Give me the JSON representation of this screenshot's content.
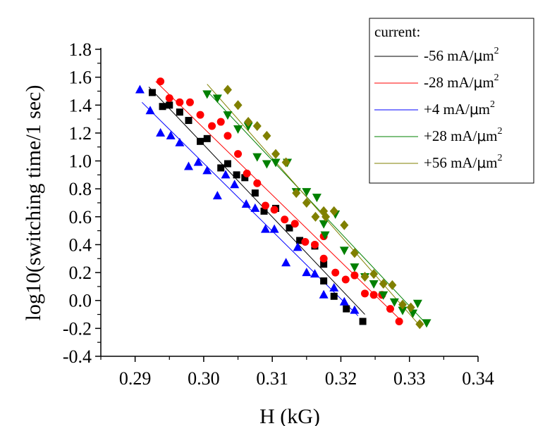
{
  "chart_data": {
    "type": "scatter",
    "xlabel": "H (kG)",
    "ylabel": "log10(switching time/1 sec)",
    "xlim": [
      0.285,
      0.34
    ],
    "ylim": [
      -0.4,
      1.8
    ],
    "xticks": [
      "0.29",
      "0.30",
      "0.31",
      "0.32",
      "0.33",
      "0.34"
    ],
    "yticks": [
      "-0.4",
      "-0.2",
      "0.0",
      "0.2",
      "0.4",
      "0.6",
      "0.8",
      "1.0",
      "1.2",
      "1.4",
      "1.6",
      "1.8"
    ],
    "grid": false,
    "legend": {
      "title": "current:",
      "placement": "top-right",
      "entries": [
        {
          "prefix": "-56 mA/",
          "mu": "μ",
          "unit": "m",
          "sup": "2"
        },
        {
          "prefix": "-28 mA/",
          "mu": "μ",
          "unit": "m",
          "sup": "2"
        },
        {
          "prefix": "+4 mA/",
          "mu": "μ",
          "unit": "m",
          "sup": "2"
        },
        {
          "prefix": "+28 mA/",
          "mu": "μ",
          "unit": "m",
          "sup": "2"
        },
        {
          "prefix": "+56 mA/",
          "mu": "μ",
          "unit": "m",
          "sup": "2"
        }
      ]
    },
    "series": [
      {
        "name": "-56 mA/μm²",
        "color": "#000000",
        "marker": "square",
        "fit": [
          [
            0.292,
            1.53
          ],
          [
            0.3235,
            -0.1
          ]
        ],
        "points": [
          [
            0.2925,
            1.49
          ],
          [
            0.294,
            1.39
          ],
          [
            0.295,
            1.4
          ],
          [
            0.2965,
            1.35
          ],
          [
            0.2978,
            1.29
          ],
          [
            0.2995,
            1.14
          ],
          [
            0.3005,
            1.16
          ],
          [
            0.3025,
            0.95
          ],
          [
            0.3035,
            0.98
          ],
          [
            0.3048,
            0.9
          ],
          [
            0.306,
            0.88
          ],
          [
            0.3075,
            0.77
          ],
          [
            0.3088,
            0.64
          ],
          [
            0.3105,
            0.66
          ],
          [
            0.3125,
            0.52
          ],
          [
            0.314,
            0.43
          ],
          [
            0.3162,
            0.39
          ],
          [
            0.3175,
            0.26
          ],
          [
            0.3175,
            0.14
          ],
          [
            0.319,
            0.03
          ],
          [
            0.3208,
            -0.06
          ],
          [
            0.3232,
            -0.15
          ]
        ]
      },
      {
        "name": "-28 mA/μm²",
        "color": "#ff0000",
        "marker": "circle",
        "fit": [
          [
            0.293,
            1.57
          ],
          [
            0.3285,
            -0.13
          ]
        ],
        "points": [
          [
            0.2937,
            1.57
          ],
          [
            0.295,
            1.45
          ],
          [
            0.2965,
            1.42
          ],
          [
            0.298,
            1.42
          ],
          [
            0.2995,
            1.33
          ],
          [
            0.3012,
            1.25
          ],
          [
            0.3025,
            1.28
          ],
          [
            0.3035,
            1.18
          ],
          [
            0.305,
            1.05
          ],
          [
            0.3063,
            0.91
          ],
          [
            0.3078,
            0.84
          ],
          [
            0.309,
            0.68
          ],
          [
            0.3103,
            0.65
          ],
          [
            0.3118,
            0.58
          ],
          [
            0.3133,
            0.55
          ],
          [
            0.3148,
            0.42
          ],
          [
            0.3162,
            0.4
          ],
          [
            0.3175,
            0.46
          ],
          [
            0.3175,
            0.3
          ],
          [
            0.3192,
            0.2
          ],
          [
            0.3207,
            0.15
          ],
          [
            0.322,
            0.18
          ],
          [
            0.3235,
            0.05
          ],
          [
            0.3248,
            0.04
          ],
          [
            0.326,
            0.04
          ],
          [
            0.3272,
            -0.06
          ],
          [
            0.3285,
            -0.15
          ]
        ]
      },
      {
        "name": "+4 mA/μm²",
        "color": "#0000ff",
        "marker": "triangle-up",
        "fit": [
          [
            0.291,
            1.42
          ],
          [
            0.3225,
            -0.11
          ]
        ],
        "points": [
          [
            0.2907,
            1.51
          ],
          [
            0.2922,
            1.36
          ],
          [
            0.2937,
            1.2
          ],
          [
            0.2952,
            1.18
          ],
          [
            0.2965,
            1.13
          ],
          [
            0.2978,
            0.96
          ],
          [
            0.2992,
            0.99
          ],
          [
            0.3005,
            0.93
          ],
          [
            0.302,
            0.75
          ],
          [
            0.3032,
            0.9
          ],
          [
            0.3045,
            0.83
          ],
          [
            0.3062,
            0.69
          ],
          [
            0.3075,
            0.66
          ],
          [
            0.309,
            0.51
          ],
          [
            0.3103,
            0.51
          ],
          [
            0.312,
            0.27
          ],
          [
            0.3137,
            0.38
          ],
          [
            0.315,
            0.2
          ],
          [
            0.3162,
            0.19
          ],
          [
            0.3175,
            0.04
          ],
          [
            0.319,
            0.09
          ],
          [
            0.3205,
            -0.01
          ],
          [
            0.322,
            -0.07
          ]
        ]
      },
      {
        "name": "+28 mA/μm²",
        "color": "#008000",
        "marker": "triangle-down",
        "fit": [
          [
            0.3005,
            1.5
          ],
          [
            0.3325,
            -0.17
          ]
        ],
        "points": [
          [
            0.3005,
            1.48
          ],
          [
            0.302,
            1.45
          ],
          [
            0.3035,
            1.33
          ],
          [
            0.305,
            1.23
          ],
          [
            0.3065,
            1.25
          ],
          [
            0.3078,
            1.03
          ],
          [
            0.3092,
            0.98
          ],
          [
            0.3105,
            0.99
          ],
          [
            0.3122,
            0.99
          ],
          [
            0.3135,
            0.78
          ],
          [
            0.315,
            0.78
          ],
          [
            0.3165,
            0.74
          ],
          [
            0.3175,
            0.55
          ],
          [
            0.3177,
            0.47
          ],
          [
            0.3192,
            0.62
          ],
          [
            0.3205,
            0.36
          ],
          [
            0.322,
            0.24
          ],
          [
            0.3235,
            0.17
          ],
          [
            0.3248,
            0.12
          ],
          [
            0.3262,
            0.04
          ],
          [
            0.3278,
            -0.01
          ],
          [
            0.329,
            -0.07
          ],
          [
            0.3305,
            -0.09
          ],
          [
            0.3312,
            -0.02
          ],
          [
            0.3325,
            -0.16
          ]
        ]
      },
      {
        "name": "+56 mA/μm²",
        "color": "#808000",
        "marker": "diamond",
        "fit": [
          [
            0.3005,
            1.55
          ],
          [
            0.3315,
            -0.18
          ]
        ],
        "points": [
          [
            0.3035,
            1.51
          ],
          [
            0.305,
            1.4
          ],
          [
            0.3065,
            1.28
          ],
          [
            0.3078,
            1.25
          ],
          [
            0.3092,
            1.18
          ],
          [
            0.3105,
            1.05
          ],
          [
            0.312,
            0.99
          ],
          [
            0.3135,
            0.77
          ],
          [
            0.315,
            0.7
          ],
          [
            0.3163,
            0.6
          ],
          [
            0.3175,
            0.64
          ],
          [
            0.3178,
            0.6
          ],
          [
            0.319,
            0.64
          ],
          [
            0.3205,
            0.54
          ],
          [
            0.322,
            0.34
          ],
          [
            0.3235,
            0.17
          ],
          [
            0.3248,
            0.19
          ],
          [
            0.3262,
            0.12
          ],
          [
            0.3275,
            0.11
          ],
          [
            0.329,
            -0.03
          ],
          [
            0.3302,
            -0.05
          ],
          [
            0.3315,
            -0.17
          ]
        ]
      }
    ]
  }
}
